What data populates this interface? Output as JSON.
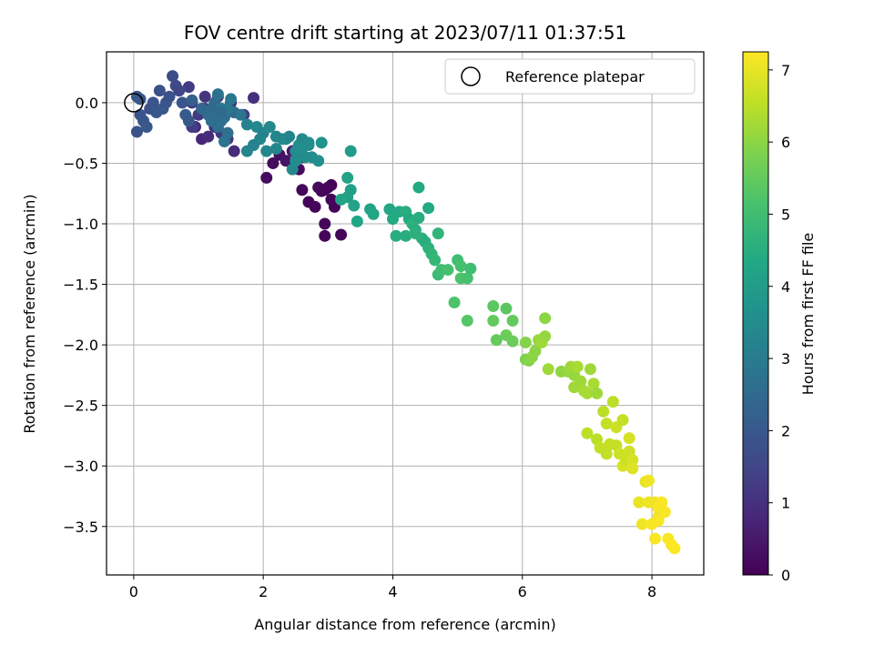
{
  "chart_data": {
    "type": "scatter",
    "title": "FOV centre drift starting at 2023/07/11 01:37:51",
    "xlabel": "Angular distance from reference (arcmin)",
    "ylabel": "Rotation from reference (arcmin)",
    "xlim": [
      -0.42,
      8.8
    ],
    "ylim": [
      -3.9,
      0.42
    ],
    "xticks": [
      0,
      2,
      4,
      6,
      8
    ],
    "yticks": [
      0.0,
      -0.5,
      -1.0,
      -1.5,
      -2.0,
      -2.5,
      -3.0,
      -3.5
    ],
    "grid": true,
    "colormap": "viridis",
    "legend": {
      "placement": "top-right",
      "entries": [
        {
          "label": "Reference platepar",
          "marker": "open-circle"
        }
      ]
    },
    "reference_point": {
      "x": 0.0,
      "y": 0.0
    },
    "colorbar": {
      "label": "Hours from first FF file",
      "range": [
        0,
        7.25
      ],
      "ticks": [
        0,
        1,
        2,
        3,
        4,
        5,
        6,
        7
      ]
    },
    "points_columns": [
      "x",
      "y",
      "hours"
    ],
    "points": [
      [
        2.05,
        -0.62,
        0.2
      ],
      [
        2.15,
        -0.5,
        0.2
      ],
      [
        2.25,
        -0.43,
        0.3
      ],
      [
        2.35,
        -0.48,
        0.4
      ],
      [
        2.45,
        -0.4,
        0.5
      ],
      [
        2.55,
        -0.55,
        0.2
      ],
      [
        2.6,
        -0.45,
        0.3
      ],
      [
        2.6,
        -0.72,
        0.1
      ],
      [
        2.7,
        -0.82,
        0.1
      ],
      [
        2.8,
        -0.86,
        0.1
      ],
      [
        2.85,
        -0.7,
        0.2
      ],
      [
        2.95,
        -0.72,
        0.2
      ],
      [
        3.0,
        -0.7,
        0.1
      ],
      [
        3.05,
        -0.68,
        0.1
      ],
      [
        3.05,
        -0.8,
        0.1
      ],
      [
        3.1,
        -0.86,
        0.1
      ],
      [
        2.95,
        -1.0,
        0.1
      ],
      [
        2.95,
        -1.1,
        0.1
      ],
      [
        3.2,
        -1.09,
        0.1
      ],
      [
        2.9,
        -0.73,
        0.1
      ],
      [
        0.95,
        -0.2,
        0.9
      ],
      [
        1.05,
        -0.3,
        0.8
      ],
      [
        1.15,
        -0.28,
        0.9
      ],
      [
        1.25,
        -0.2,
        1.0
      ],
      [
        1.35,
        -0.25,
        1.1
      ],
      [
        1.45,
        -0.3,
        1.2
      ],
      [
        1.55,
        -0.4,
        0.9
      ],
      [
        1.1,
        -0.05,
        1.0
      ],
      [
        1.2,
        -0.1,
        1.1
      ],
      [
        1.3,
        -0.15,
        0.9
      ],
      [
        1.1,
        0.05,
        1.1
      ],
      [
        1.3,
        0.05,
        1.2
      ],
      [
        1.5,
        0.0,
        1.0
      ],
      [
        1.7,
        -0.1,
        1.3
      ],
      [
        1.85,
        0.04,
        1.0
      ],
      [
        0.85,
        0.13,
        1.3
      ],
      [
        0.9,
        0.0,
        1.2
      ],
      [
        0.9,
        -0.2,
        1.3
      ],
      [
        1.0,
        -0.1,
        1.2
      ],
      [
        1.2,
        -0.05,
        1.1
      ],
      [
        0.05,
        -0.24,
        1.8
      ],
      [
        0.1,
        -0.1,
        1.9
      ],
      [
        0.1,
        0.03,
        2.0
      ],
      [
        0.15,
        -0.15,
        1.9
      ],
      [
        0.2,
        -0.2,
        2.0
      ],
      [
        0.25,
        -0.05,
        1.8
      ],
      [
        0.3,
        0.0,
        1.9
      ],
      [
        0.35,
        -0.08,
        2.0
      ],
      [
        0.4,
        0.1,
        1.8
      ],
      [
        0.45,
        -0.05,
        2.0
      ],
      [
        0.5,
        0.0,
        1.9
      ],
      [
        0.55,
        0.05,
        1.8
      ],
      [
        0.6,
        0.22,
        1.7
      ],
      [
        0.65,
        0.14,
        1.6
      ],
      [
        0.7,
        0.1,
        1.5
      ],
      [
        0.75,
        0.0,
        1.9
      ],
      [
        0.8,
        -0.1,
        2.1
      ],
      [
        0.85,
        -0.15,
        2.0
      ],
      [
        0.9,
        0.02,
        2.2
      ],
      [
        0.05,
        0.05,
        2.0
      ],
      [
        1.05,
        -0.05,
        2.4
      ],
      [
        1.15,
        -0.1,
        2.5
      ],
      [
        1.2,
        -0.15,
        2.6
      ],
      [
        1.25,
        0.0,
        2.5
      ],
      [
        1.3,
        0.07,
        2.7
      ],
      [
        1.35,
        -0.05,
        2.8
      ],
      [
        1.4,
        -0.12,
        2.6
      ],
      [
        1.45,
        -0.25,
        2.7
      ],
      [
        1.5,
        0.03,
        2.9
      ],
      [
        1.55,
        -0.08,
        2.5
      ],
      [
        1.4,
        -0.32,
        2.8
      ],
      [
        1.3,
        -0.2,
        2.6
      ],
      [
        1.2,
        -0.05,
        2.5
      ],
      [
        1.65,
        -0.1,
        2.8
      ],
      [
        1.35,
        -0.15,
        2.7
      ],
      [
        1.45,
        -0.05,
        2.9
      ],
      [
        1.25,
        -0.12,
        2.6
      ],
      [
        1.35,
        -0.08,
        2.5
      ],
      [
        1.75,
        -0.18,
        3.2
      ],
      [
        1.75,
        -0.4,
        3.3
      ],
      [
        1.85,
        -0.35,
        3.2
      ],
      [
        1.9,
        -0.2,
        3.4
      ],
      [
        1.95,
        -0.3,
        3.3
      ],
      [
        2.0,
        -0.25,
        3.2
      ],
      [
        2.05,
        -0.4,
        3.3
      ],
      [
        2.1,
        -0.2,
        3.4
      ],
      [
        2.2,
        -0.38,
        3.3
      ],
      [
        2.3,
        -0.3,
        3.4
      ],
      [
        2.35,
        -0.3,
        3.5
      ],
      [
        2.4,
        -0.28,
        3.3
      ],
      [
        2.45,
        -0.55,
        3.4
      ],
      [
        2.5,
        -0.48,
        3.6
      ],
      [
        2.55,
        -0.35,
        3.5
      ],
      [
        2.6,
        -0.3,
        3.4
      ],
      [
        2.65,
        -0.45,
        3.5
      ],
      [
        2.7,
        -0.35,
        3.4
      ],
      [
        2.75,
        -0.45,
        3.5
      ],
      [
        2.85,
        -0.48,
        3.6
      ],
      [
        2.9,
        -0.33,
        3.7
      ],
      [
        2.5,
        -0.4,
        3.5
      ],
      [
        2.6,
        -0.38,
        3.6
      ],
      [
        2.7,
        -0.33,
        3.5
      ],
      [
        2.2,
        -0.28,
        3.3
      ],
      [
        3.3,
        -0.62,
        4.2
      ],
      [
        3.35,
        -0.4,
        4.0
      ],
      [
        3.3,
        -0.78,
        4.1
      ],
      [
        3.4,
        -0.85,
        4.2
      ],
      [
        3.45,
        -0.98,
        4.3
      ],
      [
        3.65,
        -0.88,
        4.2
      ],
      [
        3.7,
        -0.92,
        4.3
      ],
      [
        3.95,
        -0.88,
        4.3
      ],
      [
        4.0,
        -0.96,
        4.4
      ],
      [
        4.05,
        -1.1,
        4.5
      ],
      [
        4.1,
        -0.9,
        4.4
      ],
      [
        4.2,
        -0.9,
        4.5
      ],
      [
        4.25,
        -0.96,
        4.4
      ],
      [
        4.3,
        -1.0,
        4.6
      ],
      [
        4.35,
        -1.05,
        4.5
      ],
      [
        4.4,
        -0.7,
        4.4
      ],
      [
        4.4,
        -0.95,
        4.5
      ],
      [
        4.45,
        -1.12,
        4.6
      ],
      [
        4.5,
        -1.15,
        4.5
      ],
      [
        4.55,
        -1.2,
        4.6
      ],
      [
        4.55,
        -0.87,
        4.4
      ],
      [
        4.6,
        -1.25,
        4.7
      ],
      [
        4.65,
        -1.3,
        4.8
      ],
      [
        4.7,
        -1.08,
        4.7
      ],
      [
        4.2,
        -1.1,
        4.5
      ],
      [
        4.35,
        -1.08,
        4.6
      ],
      [
        3.2,
        -0.8,
        4.2
      ],
      [
        3.35,
        -0.72,
        4.1
      ],
      [
        4.7,
        -1.42,
        4.9
      ],
      [
        4.75,
        -1.38,
        5.0
      ],
      [
        4.85,
        -1.38,
        5.1
      ],
      [
        5.0,
        -1.3,
        5.0
      ],
      [
        5.05,
        -1.35,
        5.1
      ],
      [
        5.05,
        -1.45,
        5.2
      ],
      [
        5.15,
        -1.45,
        5.1
      ],
      [
        5.2,
        -1.37,
        5.0
      ],
      [
        4.95,
        -1.65,
        5.2
      ],
      [
        5.15,
        -1.8,
        5.3
      ],
      [
        5.55,
        -1.68,
        5.4
      ],
      [
        5.55,
        -1.8,
        5.5
      ],
      [
        5.6,
        -1.96,
        5.5
      ],
      [
        5.75,
        -1.7,
        5.4
      ],
      [
        5.75,
        -1.92,
        5.6
      ],
      [
        5.85,
        -1.8,
        5.5
      ],
      [
        5.85,
        -1.97,
        5.6
      ],
      [
        6.05,
        -1.98,
        5.9
      ],
      [
        6.05,
        -2.12,
        5.8
      ],
      [
        6.1,
        -2.13,
        5.9
      ],
      [
        6.15,
        -2.1,
        6.0
      ],
      [
        6.2,
        -2.05,
        6.0
      ],
      [
        6.25,
        -1.96,
        6.1
      ],
      [
        6.3,
        -1.98,
        6.2
      ],
      [
        6.35,
        -1.78,
        6.0
      ],
      [
        6.35,
        -1.93,
        6.1
      ],
      [
        6.4,
        -2.2,
        6.2
      ],
      [
        6.6,
        -2.22,
        6.0
      ],
      [
        6.7,
        -2.22,
        6.1
      ],
      [
        6.75,
        -2.18,
        6.2
      ],
      [
        6.8,
        -2.25,
        6.1
      ],
      [
        6.8,
        -2.35,
        6.2
      ],
      [
        6.85,
        -2.18,
        6.3
      ],
      [
        6.9,
        -2.3,
        6.2
      ],
      [
        6.95,
        -2.38,
        6.3
      ],
      [
        7.0,
        -2.4,
        6.3
      ],
      [
        7.05,
        -2.2,
        6.2
      ],
      [
        7.1,
        -2.32,
        6.3
      ],
      [
        7.15,
        -2.4,
        6.2
      ],
      [
        7.0,
        -2.73,
        6.5
      ],
      [
        7.15,
        -2.78,
        6.5
      ],
      [
        7.2,
        -2.85,
        6.6
      ],
      [
        7.25,
        -2.55,
        6.5
      ],
      [
        7.3,
        -2.9,
        6.6
      ],
      [
        7.3,
        -2.65,
        6.6
      ],
      [
        7.4,
        -2.47,
        6.5
      ],
      [
        7.45,
        -2.83,
        6.6
      ],
      [
        7.45,
        -2.68,
        6.7
      ],
      [
        7.5,
        -2.9,
        6.7
      ],
      [
        7.55,
        -2.62,
        6.6
      ],
      [
        7.55,
        -3.0,
        6.8
      ],
      [
        7.6,
        -2.95,
        6.7
      ],
      [
        7.65,
        -2.77,
        6.8
      ],
      [
        7.65,
        -2.88,
        6.7
      ],
      [
        7.7,
        -2.95,
        6.8
      ],
      [
        7.7,
        -3.02,
        6.9
      ],
      [
        7.35,
        -2.82,
        6.6
      ],
      [
        7.8,
        -3.3,
        7.0
      ],
      [
        7.85,
        -3.48,
        7.1
      ],
      [
        7.9,
        -3.13,
        7.0
      ],
      [
        7.95,
        -3.12,
        7.1
      ],
      [
        7.95,
        -3.3,
        7.1
      ],
      [
        8.0,
        -3.48,
        7.2
      ],
      [
        8.05,
        -3.3,
        7.1
      ],
      [
        8.05,
        -3.6,
        7.2
      ],
      [
        8.1,
        -3.35,
        7.2
      ],
      [
        8.1,
        -3.42,
        7.1
      ],
      [
        8.15,
        -3.3,
        7.2
      ],
      [
        8.2,
        -3.38,
        7.2
      ],
      [
        8.25,
        -3.6,
        7.2
      ],
      [
        8.3,
        -3.65,
        7.25
      ],
      [
        8.35,
        -3.68,
        7.25
      ],
      [
        8.1,
        -3.45,
        7.2
      ]
    ]
  }
}
